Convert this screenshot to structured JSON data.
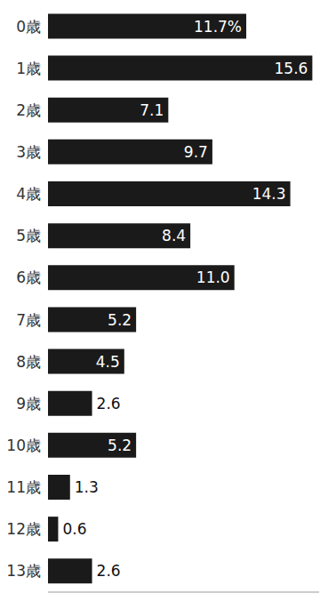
{
  "chart_data": {
    "type": "bar",
    "orientation": "horizontal",
    "categories": [
      "0歳",
      "1歳",
      "2歳",
      "3歳",
      "4歳",
      "5歳",
      "6歳",
      "7歳",
      "8歳",
      "9歳",
      "10歳",
      "11歳",
      "12歳",
      "13歳"
    ],
    "values": [
      11.7,
      15.6,
      7.1,
      9.7,
      14.3,
      8.4,
      11.0,
      5.2,
      4.5,
      2.6,
      5.2,
      1.3,
      0.6,
      2.6
    ],
    "value_labels": [
      "11.7%",
      "15.6",
      "7.1",
      "9.7",
      "14.3",
      "8.4",
      "11.0",
      "5.2",
      "4.5",
      "2.6",
      "5.2",
      "1.3",
      "0.6",
      "2.6"
    ],
    "data_labels": true,
    "color": "#1a1a1a",
    "xlim": [
      0,
      16
    ],
    "grid": false,
    "tick_labels": "y"
  }
}
